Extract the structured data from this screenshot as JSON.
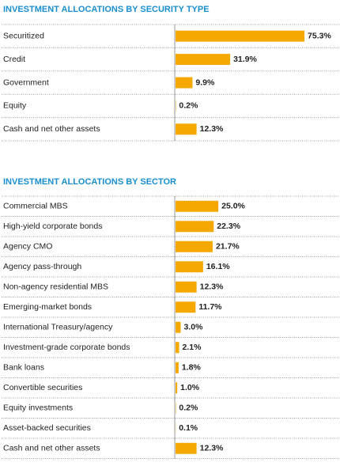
{
  "chart_data": [
    {
      "type": "bar",
      "orientation": "horizontal",
      "title": "INVESTMENT ALLOCATIONS BY SECURITY TYPE",
      "color": "#f5a800",
      "categories": [
        "Securitized",
        "Credit",
        "Government",
        "Equity",
        "Cash and net other assets"
      ],
      "values": [
        75.3,
        31.9,
        9.9,
        0.2,
        12.3
      ],
      "value_labels": [
        "75.3%",
        "31.9%",
        "9.9%",
        "0.2%",
        "12.3%"
      ]
    },
    {
      "type": "bar",
      "orientation": "horizontal",
      "title": "INVESTMENT ALLOCATIONS BY SECTOR",
      "color": "#f5a800",
      "categories": [
        "Commercial MBS",
        "High-yield corporate bonds",
        "Agency CMO",
        "Agency pass-through",
        "Non-agency residential MBS",
        "Emerging-market bonds",
        "International Treasury/agency",
        "Investment-grade corporate bonds",
        "Bank loans",
        "Convertible securities",
        "Equity investments",
        "Asset-backed securities",
        "Cash and net other assets"
      ],
      "values": [
        25.0,
        22.3,
        21.7,
        16.1,
        12.3,
        11.7,
        3.0,
        2.1,
        1.8,
        1.0,
        0.2,
        0.1,
        12.3
      ],
      "value_labels": [
        "25.0%",
        "22.3%",
        "21.7%",
        "16.1%",
        "12.3%",
        "11.7%",
        "3.0%",
        "2.1%",
        "1.8%",
        "1.0%",
        "0.2%",
        "0.1%",
        "12.3%"
      ]
    }
  ]
}
